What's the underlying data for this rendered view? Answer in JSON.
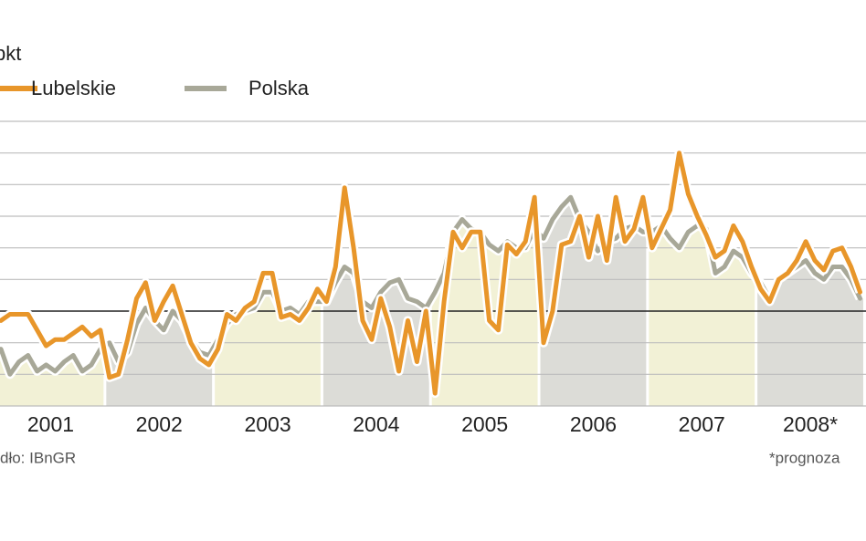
{
  "chart_data": {
    "type": "line",
    "unit": "pkt",
    "source": "dło: IBnGR",
    "footnote": "*prognoza",
    "categories": [
      null,
      null,
      null,
      null,
      null,
      null,
      "2001",
      null,
      null,
      null,
      null,
      null,
      null,
      null,
      null,
      null,
      null,
      null,
      "2002",
      null,
      null,
      null,
      null,
      null,
      null,
      null,
      null,
      null,
      null,
      null,
      "2003",
      null,
      null,
      null,
      null,
      null,
      null,
      null,
      null,
      null,
      null,
      null,
      "2004",
      null,
      null,
      null,
      null,
      null,
      null,
      null,
      null,
      null,
      null,
      null,
      "2005",
      null,
      null,
      null,
      null,
      null,
      null,
      null,
      null,
      null,
      null,
      null,
      "2006",
      null,
      null,
      null,
      null,
      null,
      null,
      null,
      null,
      null,
      null,
      null,
      "2007",
      null,
      null,
      null,
      null,
      null,
      null,
      null,
      null,
      null,
      null,
      null,
      "2008*",
      null,
      null,
      null,
      null,
      null
    ],
    "series": [
      {
        "name": "Polska",
        "color": "#a8a898",
        "values": [
          -1.2,
          -2.0,
          -1.6,
          -1.4,
          -1.9,
          -1.7,
          -1.9,
          -1.6,
          -1.4,
          -1.9,
          -1.7,
          -1.2,
          -1.0,
          -1.6,
          -1.3,
          -0.4,
          0.1,
          -0.3,
          -0.6,
          0,
          -0.3,
          -0.9,
          -1.3,
          -1.4,
          -0.9,
          -0.4,
          -0.1,
          0,
          0.1,
          0.6,
          0.6,
          0,
          0.1,
          -0.1,
          0.3,
          0.3,
          0.3,
          0.9,
          1.4,
          1.2,
          0.3,
          0.1,
          0.6,
          0.9,
          1.0,
          0.4,
          0.3,
          0.1,
          0.6,
          1.2,
          2.5,
          2.9,
          2.6,
          2.5,
          2.1,
          1.9,
          2.2,
          2.0,
          2.0,
          2.6,
          2.3,
          2.9,
          3.3,
          3.6,
          2.9,
          2.5,
          1.9,
          2.2,
          2.3,
          2.6,
          2.7,
          2.5,
          2.5,
          2.7,
          2.3,
          2.0,
          2.5,
          2.7,
          2.6,
          1.2,
          1.4,
          1.9,
          1.7,
          1.2,
          0.9,
          0.4,
          1.0,
          1.2,
          1.4,
          1.6,
          1.2,
          1.0,
          1.4,
          1.4,
          1.0,
          0.4
        ]
      },
      {
        "name": "Lubelskie",
        "color": "#e8962a",
        "values": [
          -0.3,
          -0.1,
          -0.1,
          -0.1,
          -0.6,
          -1.1,
          -0.9,
          -0.9,
          -0.7,
          -0.5,
          -0.8,
          -0.6,
          -2.1,
          -2.0,
          -0.9,
          0.4,
          0.9,
          -0.3,
          0.3,
          0.8,
          -0.1,
          -1.0,
          -1.5,
          -1.7,
          -1.2,
          -0.1,
          -0.3,
          0.1,
          0.3,
          1.2,
          1.2,
          -0.2,
          -0.1,
          -0.3,
          0.1,
          0.7,
          0.3,
          1.4,
          3.9,
          2.0,
          -0.3,
          -0.9,
          0.4,
          -0.5,
          -1.9,
          -0.3,
          -1.6,
          0,
          -2.6,
          0.3,
          2.5,
          2.0,
          2.5,
          2.5,
          -0.3,
          -0.6,
          2.1,
          1.8,
          2.2,
          3.6,
          -1.0,
          0,
          2.1,
          2.2,
          3.0,
          1.7,
          3.0,
          1.6,
          3.6,
          2.2,
          2.6,
          3.6,
          2.0,
          2.6,
          3.2,
          5.0,
          3.7,
          3.0,
          2.4,
          1.7,
          1.9,
          2.7,
          2.2,
          1.4,
          0.7,
          0.3,
          1.0,
          1.2,
          1.6,
          2.2,
          1.6,
          1.3,
          1.9,
          2.0,
          1.4,
          0.6
        ]
      }
    ],
    "band_colors": [
      "#f2f1d6",
      "#dcdcd7"
    ],
    "ylim": [
      -3,
      6
    ],
    "yticks": [
      -3,
      -2,
      -1,
      0,
      1,
      2,
      3,
      4,
      5,
      6
    ],
    "grid": true
  }
}
